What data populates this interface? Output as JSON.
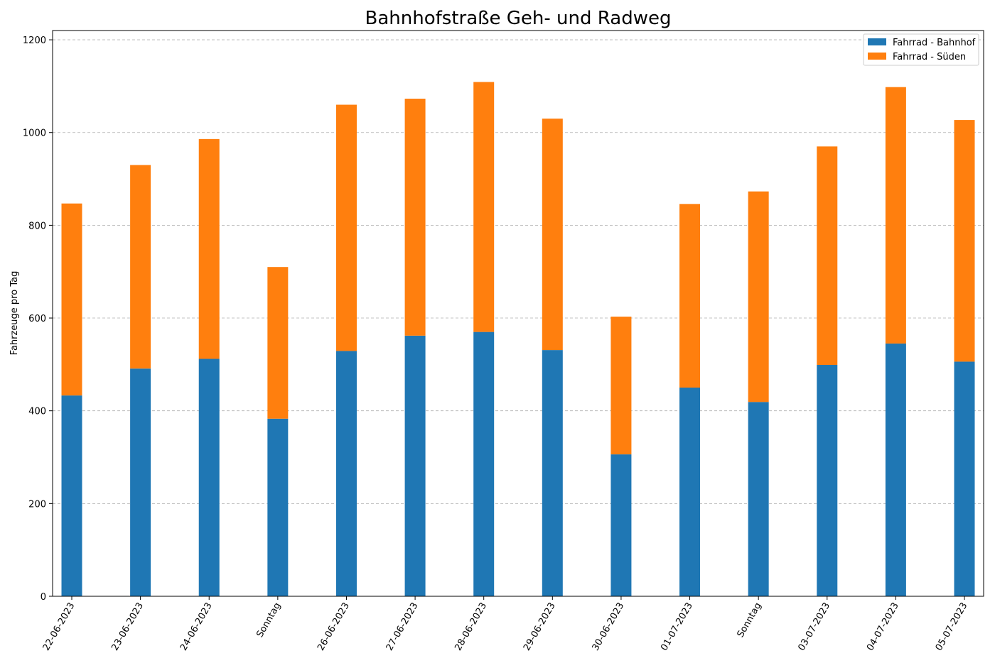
{
  "chart_data": {
    "type": "bar",
    "stacked": true,
    "title": "Bahnhofstraße Geh- und Radweg",
    "xlabel": "",
    "ylabel": "Fahrzeuge pro Tag",
    "ylim": [
      0,
      1220
    ],
    "yticks": [
      0,
      200,
      400,
      600,
      800,
      1000,
      1200
    ],
    "grid": "horizontal dashed",
    "legend_position": "top-right",
    "categories": [
      "22-06-2023",
      "23-06-2023",
      "24-06-2023",
      "Sonntag",
      "26-06-2023",
      "27-06-2023",
      "28-06-2023",
      "29-06-2023",
      "30-06-2023",
      "01-07-2023",
      "Sonntag",
      "03-07-2023",
      "04-07-2023",
      "05-07-2023"
    ],
    "series": [
      {
        "name": "Fahrrad - Bahnhof",
        "color": "#1f77b4",
        "values": [
          433,
          491,
          512,
          383,
          529,
          562,
          570,
          531,
          306,
          450,
          419,
          499,
          545,
          506
        ]
      },
      {
        "name": "Fahrrad - Süden",
        "color": "#ff7f0e",
        "values": [
          414,
          439,
          474,
          327,
          531,
          511,
          539,
          499,
          297,
          396,
          454,
          471,
          553,
          521
        ]
      }
    ]
  }
}
